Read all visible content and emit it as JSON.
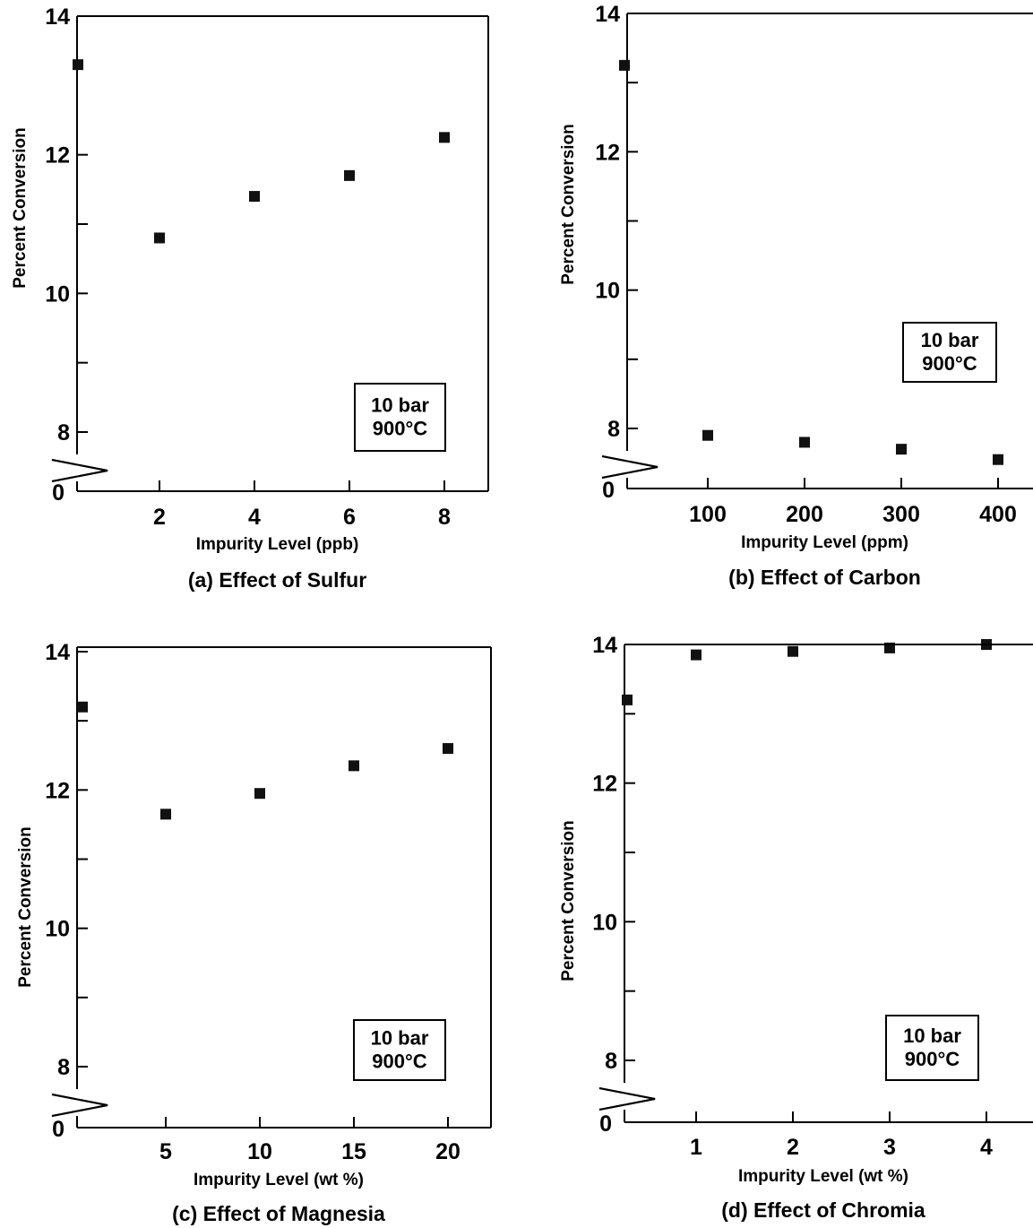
{
  "chart_data": [
    {
      "id": "a",
      "type": "scatter",
      "caption": "(a) Effect of Sulfur",
      "xlabel": "Impurity Level (ppb)",
      "ylabel": "Percent Conversion",
      "x_ticks": [
        "2",
        "4",
        "6",
        "8"
      ],
      "y_ticks": [
        "8",
        "10",
        "12",
        "14"
      ],
      "y_break_label": "0",
      "annotation": [
        "10 bar",
        "900°C"
      ],
      "x": [
        0,
        2,
        4,
        6,
        8
      ],
      "y": [
        13.3,
        10.8,
        11.4,
        11.7,
        12.25
      ]
    },
    {
      "id": "b",
      "type": "scatter",
      "caption": "(b) Effect of Carbon",
      "xlabel": "Impurity Level (ppm)",
      "ylabel": "Percent Conversion",
      "x_ticks": [
        "100",
        "200",
        "300",
        "400"
      ],
      "y_ticks": [
        "8",
        "10",
        "12",
        "14"
      ],
      "y_break_label": "0",
      "annotation": [
        "10 bar",
        "900°C"
      ],
      "x": [
        0,
        100,
        200,
        300,
        400
      ],
      "y": [
        13.25,
        7.9,
        7.8,
        7.7,
        7.55
      ]
    },
    {
      "id": "c",
      "type": "scatter",
      "caption": "(c) Effect of Magnesia",
      "xlabel": "Impurity Level (wt %)",
      "ylabel": "Percent Conversion",
      "x_ticks": [
        "5",
        "10",
        "15",
        "20"
      ],
      "y_ticks": [
        "8",
        "10",
        "12",
        "14"
      ],
      "y_break_label": "0",
      "annotation": [
        "10 bar",
        "900°C"
      ],
      "x": [
        0,
        5,
        10,
        15,
        20
      ],
      "y": [
        13.2,
        11.65,
        11.95,
        12.35,
        12.6
      ]
    },
    {
      "id": "d",
      "type": "scatter",
      "caption": "(d) Effect of Chromia",
      "xlabel": "Impurity Level (wt %)",
      "ylabel": "Percent Conversion",
      "x_ticks": [
        "1",
        "2",
        "3",
        "4"
      ],
      "y_ticks": [
        "8",
        "10",
        "12",
        "14"
      ],
      "y_break_label": "0",
      "annotation": [
        "10 bar",
        "900°C"
      ],
      "x": [
        0,
        1,
        2,
        3,
        4
      ],
      "y": [
        13.2,
        13.85,
        13.9,
        13.95,
        14.0
      ]
    }
  ]
}
